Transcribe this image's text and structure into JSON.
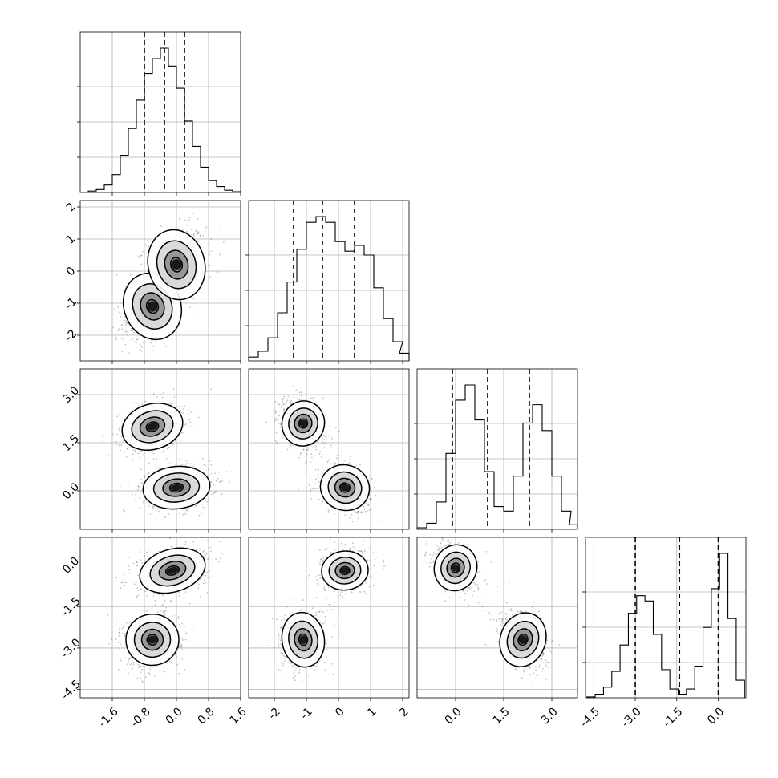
{
  "chart_data": {
    "type": "corner",
    "parameters": 4,
    "grid": true,
    "axis_ranges": [
      [
        -2.4,
        1.6
      ],
      [
        -2.8,
        2.2
      ],
      [
        -1.2,
        3.8
      ],
      [
        -4.8,
        1.0
      ]
    ],
    "x_tick_labels": [
      [
        "-1.6",
        "-0.8",
        "0.0",
        "0.8",
        "1.6"
      ],
      [
        "-2",
        "-1",
        "0",
        "1",
        "2"
      ],
      [
        "0.0",
        "1.5",
        "3.0"
      ],
      [
        "-4.5",
        "-3.0",
        "-1.5",
        "0.0"
      ]
    ],
    "y_tick_labels": [
      [],
      [
        "2",
        "1",
        "0",
        "-1",
        "-2"
      ],
      [
        "3.0",
        "1.5",
        "0.0"
      ],
      [
        "0.0",
        "-1.5",
        "-3.0",
        "-4.5"
      ]
    ],
    "x_ticks": [
      [
        -1.6,
        -0.8,
        0.0,
        0.8,
        1.6
      ],
      [
        -2,
        -1,
        0,
        1,
        2
      ],
      [
        0.0,
        1.5,
        3.0
      ],
      [
        -4.5,
        -3.0,
        -1.5,
        0.0
      ]
    ],
    "y_ticks": [
      [],
      [
        2,
        1,
        0,
        -1,
        -2
      ],
      [
        3.0,
        1.5,
        0.0
      ],
      [
        0.0,
        -1.5,
        -3.0,
        -4.5
      ]
    ],
    "quantiles": [
      [
        -0.8,
        -0.3,
        0.2
      ],
      [
        -1.4,
        -0.5,
        0.5
      ],
      [
        -0.1,
        1.0,
        2.3
      ],
      [
        -3.0,
        -1.4,
        0.0
      ]
    ],
    "histograms": [
      {
        "bin_centers": [
          -2.1,
          -1.9,
          -1.7,
          -1.5,
          -1.3,
          -1.1,
          -0.9,
          -0.7,
          -0.5,
          -0.3,
          -0.1,
          0.1,
          0.3,
          0.5,
          0.7,
          0.9,
          1.1,
          1.3,
          1.5
        ],
        "counts": [
          0.01,
          0.02,
          0.05,
          0.12,
          0.25,
          0.43,
          0.62,
          0.8,
          0.9,
          0.97,
          0.85,
          0.7,
          0.48,
          0.31,
          0.17,
          0.08,
          0.04,
          0.015,
          0.005
        ]
      },
      {
        "bin_centers": [
          -2.65,
          -2.35,
          -2.05,
          -1.75,
          -1.45,
          -1.15,
          -0.85,
          -0.55,
          -0.25,
          0.05,
          0.35,
          0.65,
          0.95,
          1.25,
          1.55,
          1.85,
          2.05
        ],
        "counts": [
          0.02,
          0.05,
          0.12,
          0.25,
          0.41,
          0.58,
          0.72,
          0.75,
          0.72,
          0.62,
          0.57,
          0.6,
          0.55,
          0.38,
          0.22,
          0.1,
          0.04
        ]
      },
      {
        "bin_centers": [
          -1.05,
          -0.75,
          -0.45,
          -0.15,
          0.15,
          0.45,
          0.75,
          1.05,
          1.35,
          1.65,
          1.95,
          2.25,
          2.55,
          2.85,
          3.15,
          3.45,
          3.7
        ],
        "counts": [
          0.01,
          0.04,
          0.18,
          0.5,
          0.85,
          0.95,
          0.72,
          0.38,
          0.15,
          0.12,
          0.35,
          0.7,
          0.82,
          0.65,
          0.35,
          0.12,
          0.03
        ]
      },
      {
        "bin_centers": [
          -4.6,
          -4.3,
          -4.0,
          -3.7,
          -3.4,
          -3.1,
          -2.8,
          -2.5,
          -2.2,
          -1.9,
          -1.6,
          -1.3,
          -1.0,
          -0.7,
          -0.4,
          -0.1,
          0.2,
          0.5,
          0.8
        ],
        "counts": [
          0.005,
          0.02,
          0.06,
          0.15,
          0.3,
          0.48,
          0.58,
          0.55,
          0.36,
          0.16,
          0.05,
          0.02,
          0.05,
          0.18,
          0.4,
          0.62,
          0.82,
          0.45,
          0.1
        ]
      }
    ],
    "scatter_panels": [
      {
        "row": 1,
        "col": 0,
        "x_mean": -0.3,
        "y_mean": -0.5,
        "x_sd": 0.45,
        "y_sd": 0.95,
        "rho": 0.55
      },
      {
        "row": 2,
        "col": 0,
        "x_mean": -0.3,
        "y_mean": 1.0,
        "x_sd": 0.45,
        "y_sd": 1.0,
        "rho": -0.5
      },
      {
        "row": 2,
        "col": 1,
        "x_mean": -0.5,
        "y_mean": 1.0,
        "x_sd": 0.85,
        "y_sd": 1.0,
        "rho": -0.9
      },
      {
        "row": 3,
        "col": 0,
        "x_mean": -0.3,
        "y_mean": -1.4,
        "x_sd": 0.45,
        "y_sd": 1.45,
        "rho": 0.6
      },
      {
        "row": 3,
        "col": 1,
        "x_mean": -0.5,
        "y_mean": -1.4,
        "x_sd": 0.85,
        "y_sd": 1.45,
        "rho": 0.9
      },
      {
        "row": 3,
        "col": 2,
        "x_mean": 1.0,
        "y_mean": -1.4,
        "x_sd": 1.0,
        "y_sd": 1.45,
        "rho": -0.95
      }
    ],
    "clusters": [
      {
        "row": 1,
        "col": 0,
        "peaks": [
          {
            "x": -0.6,
            "y": -1.1,
            "sx": 0.32,
            "sy": 0.48,
            "r": 0.4
          },
          {
            "x": 0.0,
            "y": 0.2,
            "sx": 0.32,
            "sy": 0.5,
            "r": 0.25
          }
        ]
      },
      {
        "row": 2,
        "col": 0,
        "peaks": [
          {
            "x": -0.6,
            "y": 2.0,
            "sx": 0.35,
            "sy": 0.32,
            "r": 0.3
          },
          {
            "x": 0.0,
            "y": 0.1,
            "sx": 0.38,
            "sy": 0.3,
            "r": 0.1
          }
        ]
      },
      {
        "row": 2,
        "col": 1,
        "peaks": [
          {
            "x": -1.1,
            "y": 2.1,
            "sx": 0.3,
            "sy": 0.32,
            "r": -0.3
          },
          {
            "x": 0.2,
            "y": 0.1,
            "sx": 0.35,
            "sy": 0.32,
            "r": -0.35
          }
        ]
      },
      {
        "row": 3,
        "col": 0,
        "peaks": [
          {
            "x": -0.1,
            "y": -0.2,
            "sx": 0.38,
            "sy": 0.35,
            "r": 0.3
          },
          {
            "x": -0.6,
            "y": -2.7,
            "sx": 0.3,
            "sy": 0.42,
            "r": 0.1
          }
        ]
      },
      {
        "row": 3,
        "col": 1,
        "peaks": [
          {
            "x": 0.2,
            "y": -0.2,
            "sx": 0.33,
            "sy": 0.32,
            "r": 0.1
          },
          {
            "x": -1.1,
            "y": -2.7,
            "sx": 0.3,
            "sy": 0.45,
            "r": 0.15
          }
        ]
      },
      {
        "row": 3,
        "col": 2,
        "peaks": [
          {
            "x": 0.0,
            "y": -0.1,
            "sx": 0.3,
            "sy": 0.38,
            "r": -0.35
          },
          {
            "x": 2.1,
            "y": -2.7,
            "sx": 0.32,
            "sy": 0.45,
            "r": -0.35
          }
        ]
      }
    ]
  }
}
